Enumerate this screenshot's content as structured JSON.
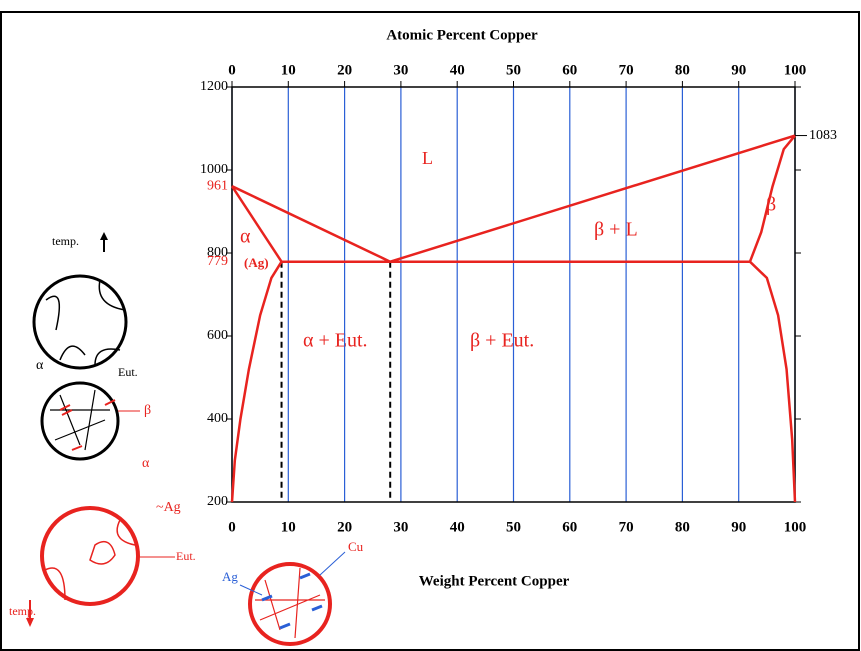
{
  "chart_data": {
    "type": "phase-diagram",
    "top_title": "Atomic Percent Copper",
    "xlabel": "Weight Percent Copper",
    "xlim": [
      0,
      100
    ],
    "xticks": [
      0,
      10,
      20,
      30,
      40,
      50,
      60,
      70,
      80,
      90,
      100
    ],
    "top_xticks": [
      0,
      10,
      20,
      30,
      40,
      50,
      60,
      70,
      80,
      90,
      100
    ],
    "ylim": [
      200,
      1200
    ],
    "yticks": [
      200,
      400,
      600,
      800,
      1000,
      1200
    ],
    "grid_color": "#2a5fd6",
    "color": "#e8231f",
    "left_temps": [
      961,
      779
    ],
    "right_temps": [
      1083
    ],
    "dashed_x": [
      8.8,
      28.1
    ],
    "boundaries": [
      {
        "x": [
          0,
          28.1,
          100
        ],
        "values": [
          961,
          779,
          1083
        ]
      },
      {
        "x": [
          0,
          8.8
        ],
        "values": [
          961,
          779
        ]
      },
      {
        "x": [
          8.8,
          92
        ],
        "values": [
          779,
          779
        ]
      },
      {
        "x": [
          8.8,
          7,
          5,
          3,
          1.5,
          0.5,
          0
        ],
        "values": [
          779,
          740,
          650,
          520,
          400,
          300,
          200
        ]
      },
      {
        "x": [
          92,
          94,
          96,
          98,
          100
        ],
        "values": [
          779,
          850,
          960,
          1050,
          1083
        ]
      },
      {
        "x": [
          92,
          95,
          97,
          98.5,
          99.5,
          100
        ],
        "values": [
          779,
          740,
          650,
          520,
          350,
          200
        ]
      }
    ],
    "annotations": [
      "L",
      "α",
      "β + L",
      "β",
      "α + Eut.",
      "β + Eut.",
      "(Ag)"
    ]
  },
  "sketches": [
    {
      "labels": [
        "temp.",
        "α",
        "Eut."
      ]
    },
    {
      "labels": [
        "β",
        "α"
      ]
    },
    {
      "labels": [
        "~Ag",
        "Eut.",
        "temp."
      ]
    },
    {
      "labels": [
        "Cu",
        "Ag"
      ]
    }
  ]
}
